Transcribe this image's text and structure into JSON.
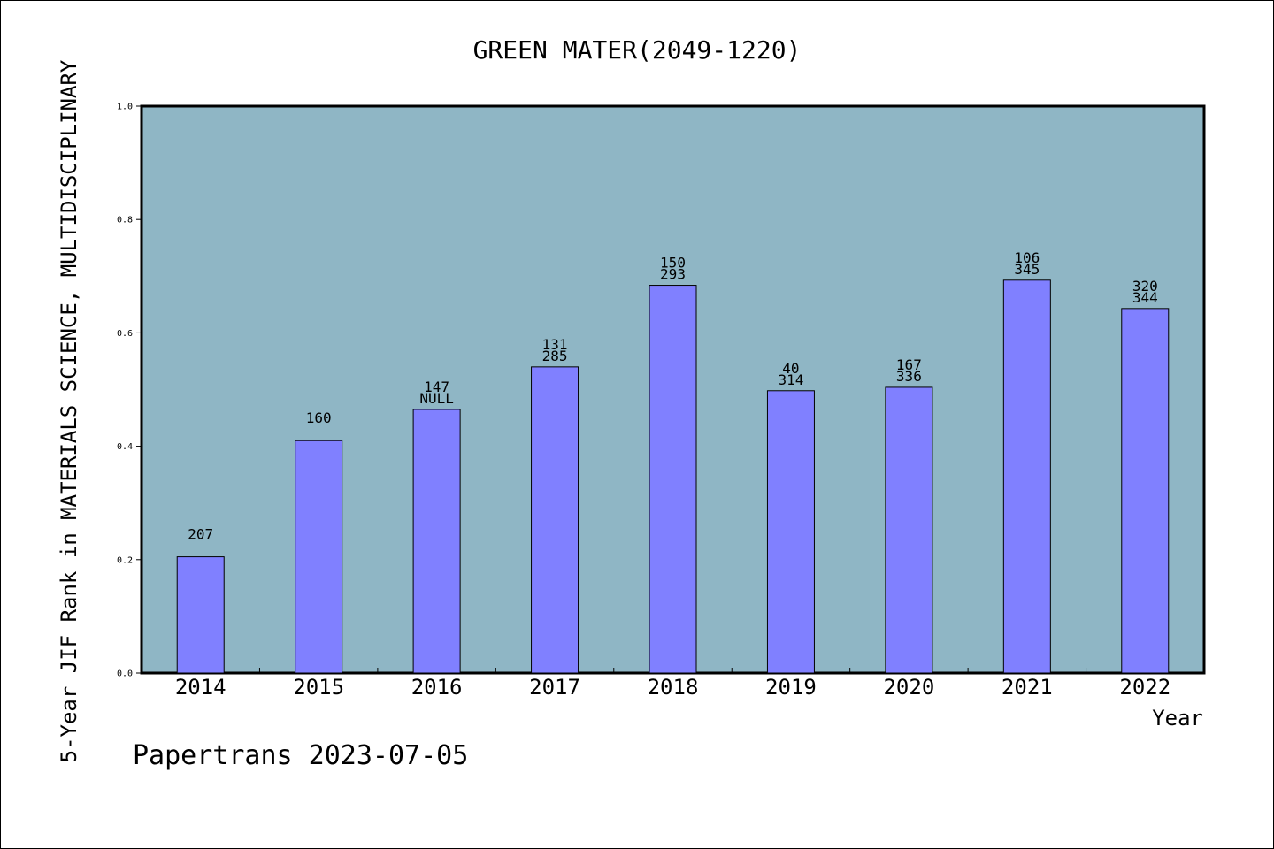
{
  "chart_data": {
    "type": "bar",
    "title": "GREEN MATER(2049-1220)",
    "xlabel": "Year",
    "ylabel": "5-Year JIF Rank in MATERIALS SCIENCE, MULTIDISCIPLINARY",
    "ylim": [
      0,
      1.0
    ],
    "yticks": [
      "0.0",
      "0.2",
      "0.4",
      "0.6",
      "0.8",
      "1.0"
    ],
    "grid": false,
    "categories": [
      "2014",
      "2015",
      "2016",
      "2017",
      "2018",
      "2019",
      "2020",
      "2021",
      "2022"
    ],
    "values": [
      0.205,
      0.41,
      0.465,
      0.54,
      0.684,
      0.498,
      0.504,
      0.693,
      0.643
    ],
    "labels": [
      [
        "207"
      ],
      [
        "160"
      ],
      [
        "147",
        "NULL"
      ],
      [
        "131",
        "285"
      ],
      [
        "150",
        "293"
      ],
      [
        "40",
        "314"
      ],
      [
        "167",
        "336"
      ],
      [
        "106",
        "345"
      ],
      [
        "320",
        "344"
      ]
    ],
    "colors": {
      "plot_bg": "#8fb6c5",
      "bar": "#8080ff"
    }
  },
  "footer": "Papertrans 2023-07-05"
}
